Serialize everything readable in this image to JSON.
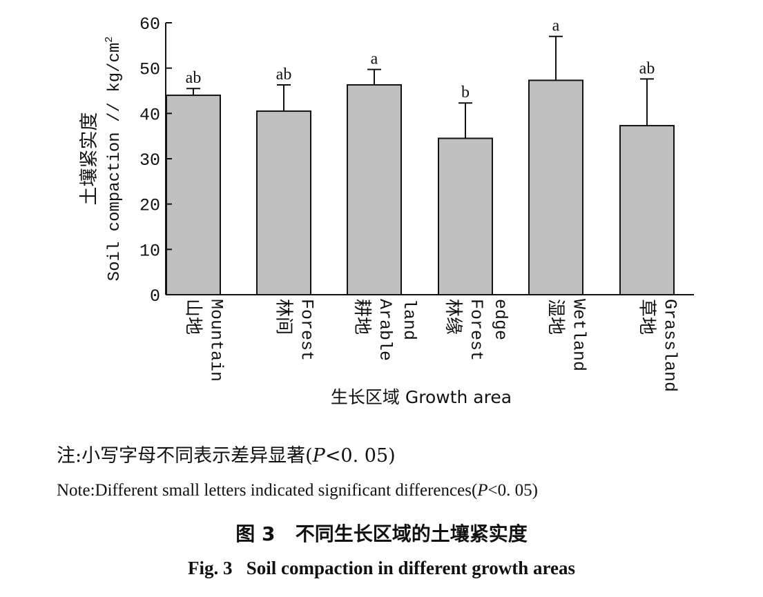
{
  "chart_data": {
    "type": "bar",
    "categories": [
      {
        "cn": "山地",
        "en": [
          "Mountain"
        ]
      },
      {
        "cn": "林间",
        "en": [
          "Forest"
        ]
      },
      {
        "cn": "耕地",
        "en": [
          "Arable",
          "land"
        ]
      },
      {
        "cn": "林缘",
        "en": [
          "Forest",
          "edge"
        ]
      },
      {
        "cn": "湿地",
        "en": [
          "Wetland"
        ]
      },
      {
        "cn": "草地",
        "en": [
          "Grassland"
        ]
      }
    ],
    "values": [
      44,
      40.5,
      46.3,
      34.5,
      47.3,
      37.3
    ],
    "errors": [
      1.5,
      5.8,
      3.4,
      7.8,
      9.7,
      10.3
    ],
    "letters": [
      "ab",
      "ab",
      "a",
      "b",
      "a",
      "ab"
    ],
    "ylabel_cn": "土壤紧实度",
    "ylabel_en": "Soil compaction // kg/cm",
    "ylabel_sup": "2",
    "xlabel": "生长区域 Growth area",
    "ylim": [
      0,
      60
    ],
    "yticks": [
      0,
      10,
      20,
      30,
      40,
      50,
      60
    ],
    "bar_color": "#c0c0c0",
    "grid": false
  },
  "notes": {
    "cn_before": "注:小写字母不同表示差异显著(",
    "cn_p": "P",
    "cn_after": "<0. 05)",
    "en_before": "Note:Different small letters indicated significant differences(",
    "en_p": "P",
    "en_after": "<0. 05)"
  },
  "figure": {
    "caption_cn": "图 3   不同生长区域的土壤紧实度",
    "caption_en": "Fig. 3   Soil compaction in different growth areas"
  }
}
